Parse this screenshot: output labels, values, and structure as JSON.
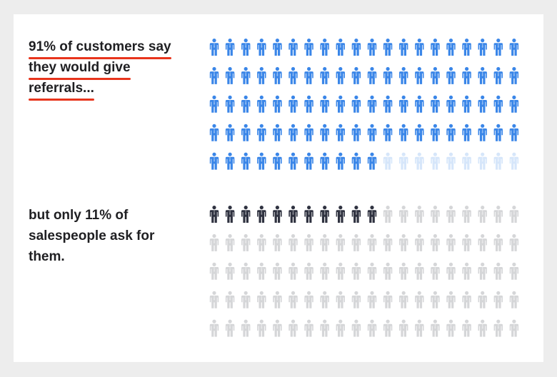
{
  "statements": {
    "top": {
      "lines": [
        "91% of customers say",
        "they would give",
        "referrals..."
      ]
    },
    "bottom": {
      "lines": [
        "but only 11% of",
        "salespeople ask for",
        "them."
      ]
    }
  },
  "colors": {
    "accent_underline": "#e8341c",
    "customers_filled": "#3a86e8",
    "customers_empty": "#d6e6fa",
    "salespeople_filled": "#2f3240",
    "salespeople_empty": "#d5d6d8",
    "text": "#1f1f22",
    "background": "#ededed",
    "card": "#ffffff"
  },
  "chart_data": [
    {
      "type": "pictogram",
      "name": "customers",
      "total": 100,
      "filled": 91,
      "percent": 91,
      "rows": 5,
      "columns": 20,
      "icon": "person-icon"
    },
    {
      "type": "pictogram",
      "name": "salespeople",
      "total": 100,
      "filled": 11,
      "percent": 11,
      "rows": 5,
      "columns": 20,
      "icon": "person-icon"
    }
  ]
}
